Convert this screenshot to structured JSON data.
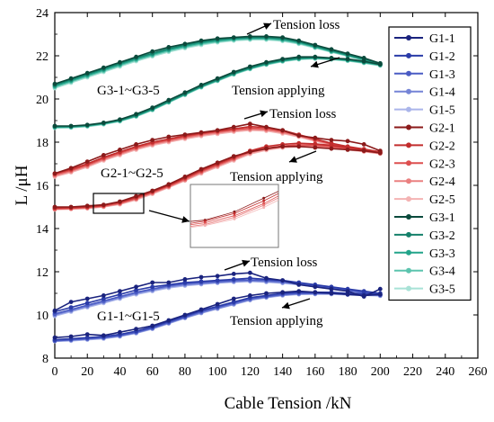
{
  "chart_data": {
    "type": "line",
    "xlabel": "Cable Tension /kN",
    "ylabel": "L /μH",
    "xlim": [
      0,
      260
    ],
    "ylim": [
      8,
      24
    ],
    "xticks": [
      0,
      20,
      40,
      60,
      80,
      100,
      120,
      140,
      160,
      180,
      200,
      220,
      240,
      260
    ],
    "yticks": [
      8,
      10,
      12,
      14,
      16,
      18,
      20,
      22,
      24
    ],
    "grid": false,
    "legend_position": "right",
    "x": [
      0,
      10,
      20,
      30,
      40,
      50,
      60,
      70,
      80,
      90,
      100,
      110,
      120,
      130,
      140,
      150,
      160,
      170,
      180,
      190,
      200
    ],
    "groups": [
      {
        "label": "G1-1~G1-5",
        "loss_label": "Tension loss",
        "apply_label": "Tension applying",
        "series": [
          {
            "name": "G1-1",
            "color": "#1a237e",
            "loss": [
              10.2,
              10.6,
              10.75,
              10.9,
              11.1,
              11.3,
              11.5,
              11.5,
              11.65,
              11.75,
              11.8,
              11.9,
              11.95,
              11.7,
              11.6,
              11.4,
              11.3,
              11.2,
              11.1,
              10.85,
              11.2
            ],
            "apply": [
              8.95,
              9.0,
              9.1,
              9.05,
              9.2,
              9.35,
              9.5,
              9.75,
              10.0,
              10.25,
              10.5,
              10.75,
              10.9,
              11.0,
              11.05,
              11.1,
              11.05,
              11.0,
              10.95,
              10.9,
              10.95
            ]
          },
          {
            "name": "G1-2",
            "color": "#2a3ba8",
            "loss": [
              10.15,
              10.35,
              10.55,
              10.75,
              10.95,
              11.15,
              11.3,
              11.4,
              11.5,
              11.55,
              11.6,
              11.65,
              11.7,
              11.65,
              11.6,
              11.5,
              11.4,
              11.3,
              11.2,
              11.1,
              11.0
            ],
            "apply": [
              8.85,
              8.9,
              8.95,
              9.0,
              9.1,
              9.25,
              9.45,
              9.7,
              9.95,
              10.2,
              10.4,
              10.6,
              10.8,
              10.9,
              11.0,
              11.05,
              11.05,
              11.05,
              11.0,
              10.98,
              10.95
            ]
          },
          {
            "name": "G1-3",
            "color": "#4a5bc4",
            "loss": [
              10.05,
              10.25,
              10.45,
              10.65,
              10.85,
              11.05,
              11.2,
              11.35,
              11.45,
              11.5,
              11.55,
              11.6,
              11.62,
              11.6,
              11.55,
              11.45,
              11.35,
              11.25,
              11.15,
              11.05,
              10.95
            ],
            "apply": [
              8.8,
              8.85,
              8.9,
              8.95,
              9.05,
              9.2,
              9.4,
              9.65,
              9.9,
              10.15,
              10.35,
              10.55,
              10.75,
              10.85,
              10.95,
              11.0,
              11.0,
              11.0,
              10.97,
              10.95,
              10.92
            ]
          },
          {
            "name": "G1-4",
            "color": "#7584d6",
            "loss": [
              10.0,
              10.2,
              10.4,
              10.6,
              10.8,
              11.0,
              11.15,
              11.3,
              11.4,
              11.45,
              11.5,
              11.55,
              11.58,
              11.55,
              11.5,
              11.42,
              11.32,
              11.22,
              11.12,
              11.02,
              10.92
            ],
            "apply": [
              8.8,
              8.83,
              8.88,
              8.93,
              9.02,
              9.17,
              9.37,
              9.62,
              9.87,
              10.1,
              10.3,
              10.5,
              10.7,
              10.82,
              10.92,
              10.97,
              10.98,
              10.98,
              10.95,
              10.93,
              10.9
            ]
          },
          {
            "name": "G1-5",
            "color": "#aab5ea",
            "loss": [
              9.95,
              10.15,
              10.35,
              10.55,
              10.75,
              10.95,
              11.1,
              11.25,
              11.35,
              11.42,
              11.48,
              11.52,
              11.55,
              11.52,
              11.47,
              11.4,
              11.3,
              11.2,
              11.1,
              11.0,
              10.9
            ],
            "apply": [
              8.78,
              8.8,
              8.85,
              8.9,
              9.0,
              9.15,
              9.35,
              9.6,
              9.85,
              10.08,
              10.28,
              10.48,
              10.68,
              10.8,
              10.9,
              10.95,
              10.96,
              10.96,
              10.93,
              10.91,
              10.88
            ]
          }
        ]
      },
      {
        "label": "G2-1~G2-5",
        "loss_label": "Tension loss",
        "apply_label": "Tension applying",
        "series": [
          {
            "name": "G2-1",
            "color": "#8b1a1a",
            "loss": [
              16.55,
              16.8,
              17.1,
              17.4,
              17.65,
              17.9,
              18.1,
              18.25,
              18.35,
              18.45,
              18.55,
              18.7,
              18.85,
              18.7,
              18.55,
              18.3,
              18.2,
              18.1,
              18.05,
              17.9,
              17.6
            ],
            "apply": [
              15.0,
              15.0,
              15.05,
              15.1,
              15.25,
              15.5,
              15.75,
              16.05,
              16.4,
              16.75,
              17.05,
              17.35,
              17.55,
              17.7,
              17.8,
              17.8,
              17.75,
              17.7,
              17.65,
              17.6,
              17.5
            ]
          },
          {
            "name": "G2-2",
            "color": "#c22d2d",
            "loss": [
              16.55,
              16.75,
              17.0,
              17.3,
              17.55,
              17.8,
              18.0,
              18.15,
              18.3,
              18.42,
              18.52,
              18.62,
              18.72,
              18.68,
              18.55,
              18.35,
              18.15,
              17.95,
              17.8,
              17.68,
              17.55
            ],
            "apply": [
              14.95,
              14.97,
              15.0,
              15.08,
              15.22,
              15.45,
              15.72,
              16.0,
              16.35,
              16.7,
              17.0,
              17.3,
              17.6,
              17.8,
              17.9,
              17.95,
              17.92,
              17.85,
              17.75,
              17.65,
              17.55
            ]
          },
          {
            "name": "G2-3",
            "color": "#dd4f4f",
            "loss": [
              16.5,
              16.7,
              16.95,
              17.25,
              17.5,
              17.75,
              17.95,
              18.1,
              18.25,
              18.38,
              18.48,
              18.58,
              18.65,
              18.62,
              18.5,
              18.32,
              18.12,
              17.92,
              17.78,
              17.65,
              17.52
            ],
            "apply": [
              14.92,
              14.94,
              14.98,
              15.05,
              15.18,
              15.4,
              15.68,
              15.97,
              16.3,
              16.65,
              16.95,
              17.25,
              17.55,
              17.72,
              17.82,
              17.88,
              17.86,
              17.8,
              17.7,
              17.6,
              17.5
            ]
          },
          {
            "name": "G2-4",
            "color": "#ea8080",
            "loss": [
              16.45,
              16.65,
              16.9,
              17.2,
              17.45,
              17.7,
              17.9,
              18.05,
              18.2,
              18.33,
              18.43,
              18.53,
              18.6,
              18.57,
              18.45,
              18.28,
              18.08,
              17.9,
              17.75,
              17.62,
              17.5
            ],
            "apply": [
              14.9,
              14.92,
              14.95,
              15.02,
              15.15,
              15.37,
              15.64,
              15.93,
              16.25,
              16.6,
              16.9,
              17.2,
              17.5,
              17.68,
              17.78,
              17.83,
              17.82,
              17.77,
              17.68,
              17.58,
              17.48
            ]
          },
          {
            "name": "G2-5",
            "color": "#f4b3b3",
            "loss": [
              16.4,
              16.6,
              16.85,
              17.15,
              17.4,
              17.65,
              17.85,
              18.0,
              18.15,
              18.28,
              18.38,
              18.48,
              18.55,
              18.52,
              18.4,
              18.24,
              18.05,
              17.87,
              17.72,
              17.6,
              17.48
            ],
            "apply": [
              14.88,
              14.9,
              14.93,
              15.0,
              15.12,
              15.33,
              15.6,
              15.9,
              16.22,
              16.55,
              16.85,
              17.15,
              17.45,
              17.63,
              17.74,
              17.79,
              17.78,
              17.74,
              17.65,
              17.56,
              17.46
            ]
          }
        ]
      },
      {
        "label": "G3-1~G3-5",
        "loss_label": "Tension loss",
        "apply_label": "Tension applying",
        "series": [
          {
            "name": "G3-1",
            "color": "#0b4a3c",
            "loss": [
              20.7,
              20.95,
              21.2,
              21.45,
              21.7,
              21.95,
              22.2,
              22.4,
              22.55,
              22.7,
              22.8,
              22.85,
              22.9,
              22.9,
              22.85,
              22.7,
              22.5,
              22.3,
              22.1,
              21.9,
              21.65
            ],
            "apply": [
              18.75,
              18.75,
              18.8,
              18.9,
              19.05,
              19.3,
              19.6,
              19.95,
              20.3,
              20.65,
              20.95,
              21.25,
              21.5,
              21.7,
              21.85,
              21.95,
              21.95,
              21.9,
              21.85,
              21.75,
              21.6
            ]
          },
          {
            "name": "G3-2",
            "color": "#14806a",
            "loss": [
              20.65,
              20.9,
              21.15,
              21.4,
              21.65,
              21.9,
              22.12,
              22.33,
              22.5,
              22.65,
              22.75,
              22.82,
              22.85,
              22.85,
              22.8,
              22.65,
              22.45,
              22.25,
              22.05,
              21.85,
              21.65
            ],
            "apply": [
              18.72,
              18.73,
              18.78,
              18.88,
              19.02,
              19.25,
              19.55,
              19.9,
              20.25,
              20.6,
              20.9,
              21.2,
              21.45,
              21.65,
              21.8,
              21.9,
              21.92,
              21.88,
              21.82,
              21.72,
              21.6
            ]
          },
          {
            "name": "G3-3",
            "color": "#22a48a",
            "loss": [
              20.6,
              20.85,
              21.1,
              21.35,
              21.6,
              21.85,
              22.07,
              22.28,
              22.45,
              22.6,
              22.7,
              22.78,
              22.82,
              22.82,
              22.76,
              22.62,
              22.42,
              22.22,
              22.02,
              21.83,
              21.63
            ],
            "apply": [
              18.7,
              18.71,
              18.76,
              18.86,
              19.0,
              19.22,
              19.52,
              19.87,
              20.22,
              20.57,
              20.87,
              21.17,
              21.42,
              21.62,
              21.77,
              21.87,
              21.9,
              21.86,
              21.8,
              21.7,
              21.58
            ]
          },
          {
            "name": "G3-4",
            "color": "#5cc4ae",
            "loss": [
              20.55,
              20.8,
              21.05,
              21.3,
              21.55,
              21.8,
              22.02,
              22.23,
              22.4,
              22.55,
              22.66,
              22.74,
              22.78,
              22.78,
              22.72,
              22.58,
              22.39,
              22.19,
              22.0,
              21.81,
              21.61
            ],
            "apply": [
              18.68,
              18.69,
              18.74,
              18.84,
              18.98,
              19.2,
              19.5,
              19.85,
              20.2,
              20.55,
              20.85,
              21.15,
              21.4,
              21.6,
              21.75,
              21.85,
              21.88,
              21.84,
              21.78,
              21.68,
              21.56
            ]
          },
          {
            "name": "G3-5",
            "color": "#a8e2d6",
            "loss": [
              20.5,
              20.75,
              21.0,
              21.25,
              21.5,
              21.75,
              21.97,
              22.18,
              22.35,
              22.5,
              22.62,
              22.7,
              22.74,
              22.74,
              22.68,
              22.55,
              22.36,
              22.17,
              21.98,
              21.79,
              21.59
            ],
            "apply": [
              18.66,
              18.67,
              18.72,
              18.82,
              18.96,
              19.18,
              19.48,
              19.83,
              20.18,
              20.53,
              20.83,
              21.13,
              21.38,
              21.58,
              21.73,
              21.83,
              21.86,
              21.82,
              21.76,
              21.66,
              21.54
            ]
          }
        ]
      }
    ]
  }
}
